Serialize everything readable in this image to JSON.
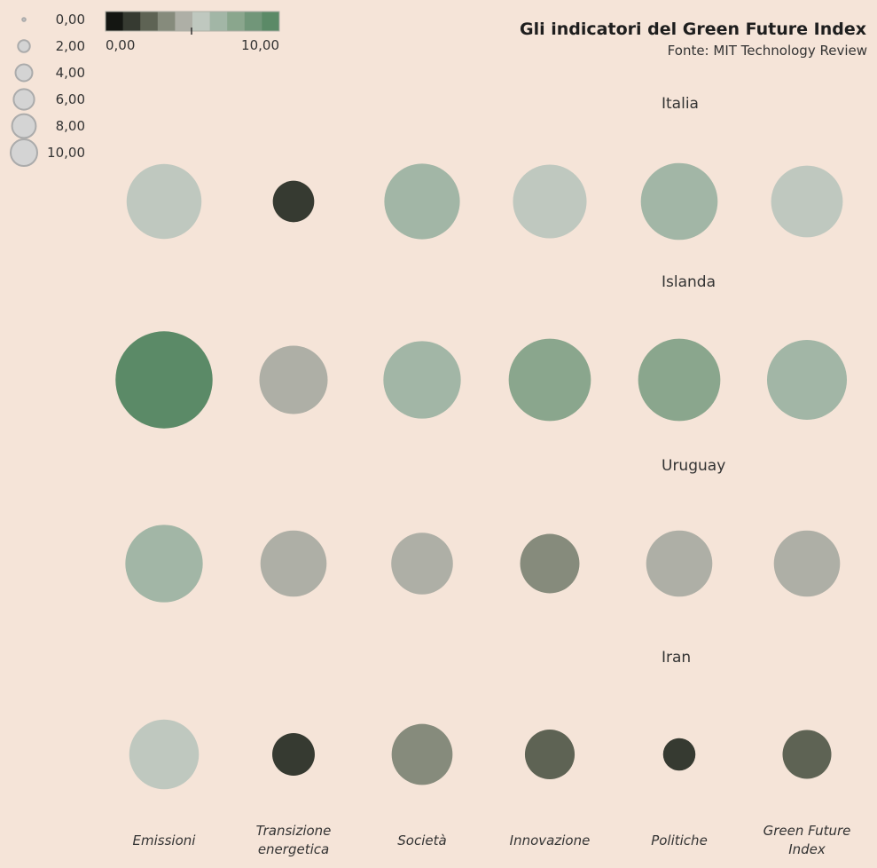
{
  "header": {
    "title": "Gli indicatori del Green Future Index",
    "subtitle": "Fonte: MIT Technology Review"
  },
  "size_legend": {
    "entries": [
      "0,00",
      "2,00",
      "4,00",
      "6,00",
      "8,00",
      "10,00"
    ],
    "values": [
      0,
      2,
      4,
      6,
      8,
      10
    ]
  },
  "color_legend": {
    "min_label": "0,00",
    "max_label": "10,00",
    "min": 0,
    "max": 10,
    "colors": [
      "#141612",
      "#363a31",
      "#5e6354",
      "#868b7c",
      "#aeafa6",
      "#bfc8bf",
      "#a2b6a6",
      "#8aa68d",
      "#719679",
      "#5b8a67"
    ]
  },
  "chart_data": {
    "type": "bubble-matrix",
    "title": "Gli indicatori del Green Future Index",
    "subtitle": "Fonte: MIT Technology Review",
    "categories": [
      "Emissioni",
      "Transizione energetica",
      "Società",
      "Innovazione",
      "Politiche",
      "Green Future Index"
    ],
    "category_lines": [
      [
        "Emissioni"
      ],
      [
        "Transizione",
        "energetica"
      ],
      [
        "Società"
      ],
      [
        "Innovazione"
      ],
      [
        "Politiche"
      ],
      [
        "Green Future",
        "Index"
      ]
    ],
    "series": [
      {
        "name": "Italia",
        "values": [
          5.9,
          1.8,
          6.0,
          5.7,
          6.2,
          5.4
        ]
      },
      {
        "name": "Islanda",
        "values": [
          9.9,
          4.9,
          6.3,
          7.1,
          7.1,
          6.7
        ]
      },
      {
        "name": "Uruguay",
        "values": [
          6.3,
          4.6,
          4.0,
          3.7,
          4.6,
          4.6
        ]
      },
      {
        "name": "Iran",
        "values": [
          5.1,
          1.9,
          3.9,
          2.6,
          1.1,
          2.5
        ]
      }
    ],
    "size_range": [
      0,
      10
    ],
    "color_range": [
      0,
      10
    ]
  }
}
